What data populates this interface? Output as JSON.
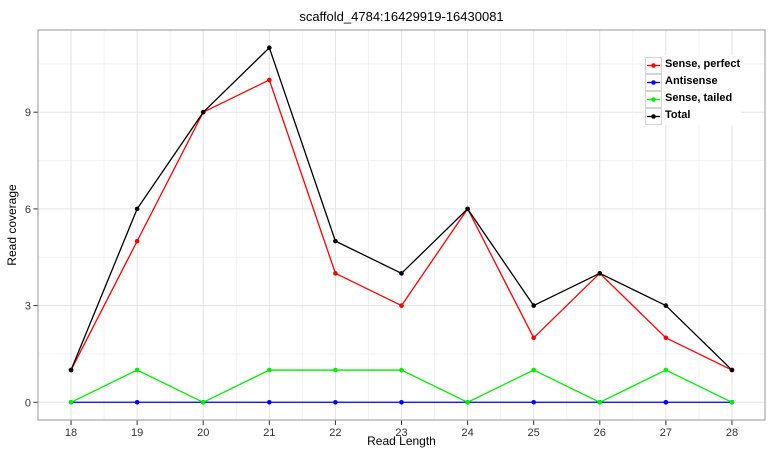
{
  "chart_data": {
    "type": "line",
    "title": "scaffold_4784:16429919-16430081",
    "xlabel": "Read Length",
    "ylabel": "Read coverage",
    "x": [
      18,
      19,
      20,
      21,
      22,
      23,
      24,
      25,
      26,
      27,
      28
    ],
    "xticks": [
      18,
      19,
      20,
      21,
      22,
      23,
      24,
      25,
      26,
      27,
      28
    ],
    "yticks": [
      0,
      3,
      6,
      9
    ],
    "xlim": [
      17.5,
      28.5
    ],
    "ylim": [
      -0.55,
      11.55
    ],
    "minor_xticks": [
      18.5,
      19.5,
      20.5,
      21.5,
      22.5,
      23.5,
      24.5,
      25.5,
      26.5,
      27.5
    ],
    "minor_yticks": [
      1.5,
      4.5,
      7.5,
      10.5
    ],
    "grid": "on",
    "legend_position": "top-right-inside",
    "series": [
      {
        "name": "Sense, perfect",
        "color": "#ff0000",
        "values": [
          1,
          5,
          9,
          10,
          4,
          3,
          6,
          2,
          4,
          2,
          1
        ]
      },
      {
        "name": "Antisense",
        "color": "#0000ff",
        "values": [
          0,
          0,
          0,
          0,
          0,
          0,
          0,
          0,
          0,
          0,
          0
        ]
      },
      {
        "name": "Sense, tailed",
        "color": "#00ee00",
        "values": [
          0,
          1,
          0,
          1,
          1,
          1,
          0,
          1,
          0,
          1,
          0
        ]
      },
      {
        "name": "Total",
        "color": "#000000",
        "values": [
          1,
          6,
          9,
          11,
          5,
          4,
          6,
          3,
          4,
          3,
          1
        ]
      }
    ],
    "colors": {
      "background": "#ffffff",
      "panel_background": "#ffffff",
      "panel_border": "#a8a8a8",
      "grid_major": "#e4e4e4",
      "grid_minor": "#f2f2f2",
      "tick_mark": "#333333",
      "tick_text": "#333333",
      "text": "#000000"
    }
  }
}
